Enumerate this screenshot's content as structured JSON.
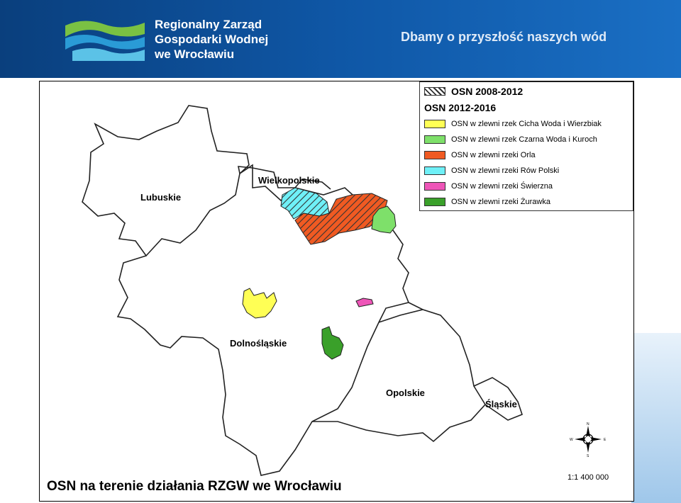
{
  "header": {
    "org_lines": [
      "Regionalny Zarząd",
      "Gospodarki Wodnej",
      "we Wrocławiu"
    ],
    "slogan": "Dbamy o przyszłość naszych wód",
    "colors": {
      "background": "#0f57a6",
      "logo_green": "#7ac143",
      "logo_blue": "#5bc2e7"
    }
  },
  "map": {
    "regions": [
      "Lubuskie",
      "Wielkopolskie",
      "Dolnośląskie",
      "Opolskie",
      "Śląskie"
    ],
    "caption": "OSN na terenie działania RZGW we Wrocławiu",
    "scale": "1:1 400 000",
    "compass_icon": "compass-rose-icon",
    "legend": {
      "header_2008": "OSN 2008-2012",
      "header_2012": "OSN 2012-2016",
      "items": [
        {
          "label": "OSN w zlewni rzek Cicha Woda i Wierzbiak",
          "color": "#ffff55"
        },
        {
          "label": "OSN w zlewni rzek Czarna Woda i Kuroch",
          "color": "#7ee06a"
        },
        {
          "label": "OSN w zlewni rzeki Orla",
          "color": "#f05a22"
        },
        {
          "label": "OSN w zlewni rzeki Rów Polski",
          "color": "#6ff0f7"
        },
        {
          "label": "OSN w zlewni rzeki Świerzna",
          "color": "#ee55b8"
        },
        {
          "label": "OSN w zlewni rzeki Żurawka",
          "color": "#3aa02a"
        }
      ]
    }
  }
}
